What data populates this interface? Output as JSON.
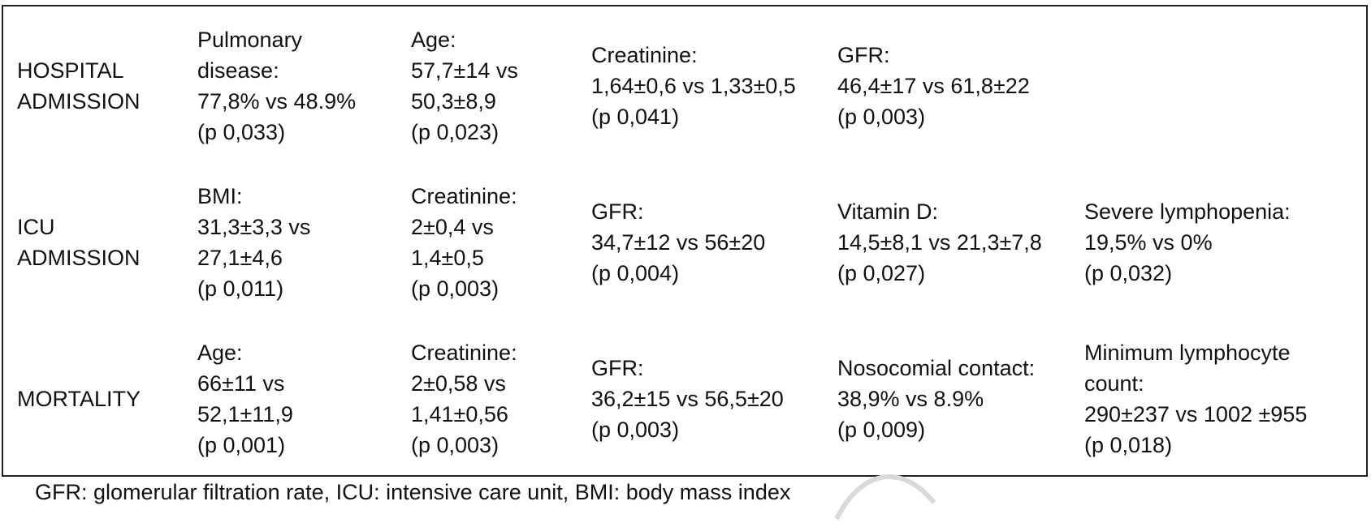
{
  "rows": [
    {
      "label": "HOSPITAL\nADMISSION",
      "cells": [
        "Pulmonary\ndisease:\n77,8% vs 48.9%\n(p 0,033)",
        "Age:\n57,7±14 vs\n50,3±8,9\n(p 0,023)",
        "Creatinine:\n1,64±0,6 vs 1,33±0,5\n (p 0,041)",
        "GFR:\n46,4±17 vs 61,8±22\n(p 0,003)",
        ""
      ]
    },
    {
      "label": "ICU\nADMISSION",
      "cells": [
        "BMI:\n31,3±3,3 vs\n27,1±4,6\n(p 0,011)",
        "Creatinine:\n2±0,4 vs\n1,4±0,5\n(p 0,003)",
        "GFR:\n34,7±12 vs 56±20\n(p 0,004)",
        "Vitamin D:\n14,5±8,1 vs 21,3±7,8\n(p 0,027)",
        "Severe lymphopenia:\n19,5% vs 0%\n(p 0,032)"
      ]
    },
    {
      "label": "MORTALITY",
      "cells": [
        "Age:\n66±11 vs\n52,1±11,9\n(p 0,001)",
        "Creatinine:\n2±0,58 vs\n1,41±0,56\n(p 0,003)",
        "GFR:\n36,2±15 vs 56,5±20\n(p 0,003)",
        "Nosocomial contact:\n38,9% vs 8.9%\n(p 0,009)",
        "Minimum lymphocyte\ncount:\n290±237 vs 1002 ±955\n(p 0,018)"
      ]
    }
  ],
  "footnote": "GFR: glomerular filtration rate, ICU: intensive care unit, BMI: body mass index",
  "colors": {
    "border": "#222222",
    "text": "#111111",
    "watermark": "#d9d9d9"
  }
}
